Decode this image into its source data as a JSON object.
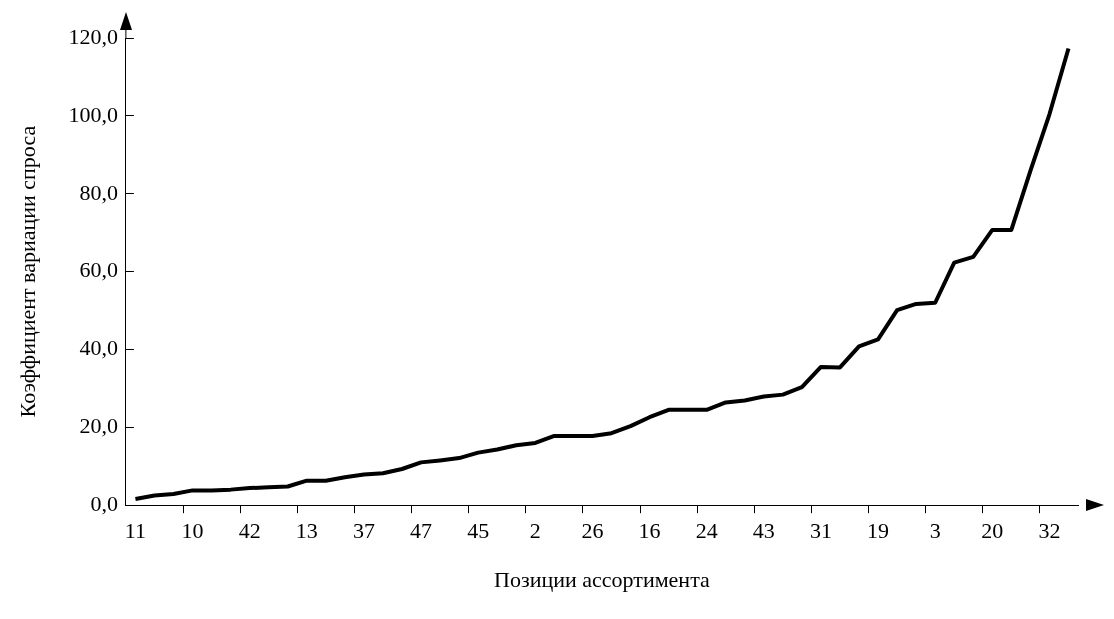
{
  "chart_data": {
    "type": "line",
    "xlabel": "Позиции ассортимента",
    "ylabel": "Коэффициент вариации спроса",
    "categories": [
      "11",
      null,
      null,
      "10",
      null,
      null,
      "42",
      null,
      null,
      "13",
      null,
      null,
      "37",
      null,
      null,
      "47",
      null,
      null,
      "45",
      null,
      null,
      "2",
      null,
      null,
      "26",
      null,
      null,
      "16",
      null,
      null,
      "24",
      null,
      null,
      "43",
      null,
      null,
      "31",
      null,
      null,
      "19",
      null,
      null,
      "3",
      null,
      null,
      "20",
      null,
      null,
      "32",
      null
    ],
    "series": [
      {
        "color": "#000000",
        "values": [
          1.6,
          2.5,
          2.9,
          3.8,
          3.8,
          4.0,
          4.4,
          4.6,
          4.8,
          6.3,
          6.3,
          7.2,
          7.9,
          8.2,
          9.3,
          11.0,
          11.5,
          12.1,
          13.5,
          14.3,
          15.4,
          16.0,
          17.8,
          17.8,
          17.8,
          18.5,
          20.3,
          22.6,
          24.5,
          24.5,
          24.5,
          26.4,
          26.9,
          27.9,
          28.4,
          30.3,
          35.5,
          35.4,
          40.8,
          42.6,
          50.1,
          51.7,
          52.0,
          62.3,
          63.8,
          70.7,
          70.7,
          85.9,
          100.4,
          117.3
        ]
      }
    ],
    "ylim": [
      0,
      120
    ],
    "yticks": [
      {
        "value": 0,
        "label": "0,0"
      },
      {
        "value": 20,
        "label": "20,0"
      },
      {
        "value": 40,
        "label": "40,0"
      },
      {
        "value": 60,
        "label": "60,0"
      },
      {
        "value": 80,
        "label": "80,0"
      },
      {
        "value": 100,
        "label": "100,0"
      },
      {
        "value": 120,
        "label": "120,0"
      }
    ],
    "grid": false,
    "legend": false,
    "marker": "none",
    "line_style": "solid"
  }
}
